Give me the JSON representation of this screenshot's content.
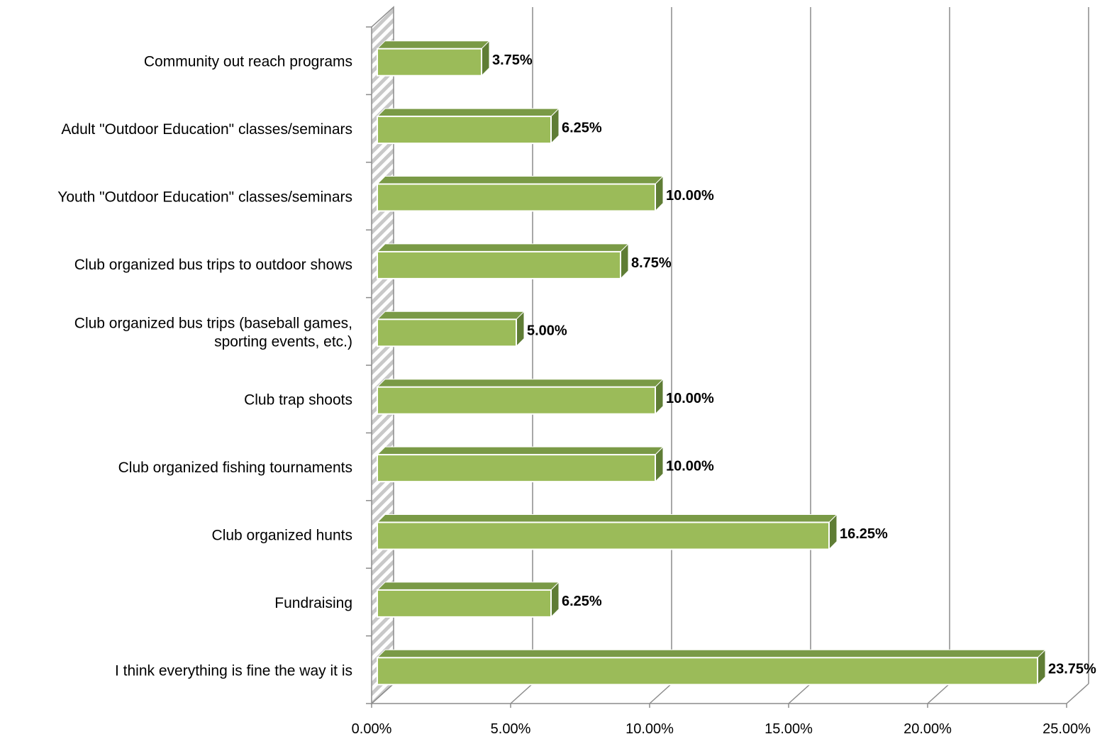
{
  "chart_data": {
    "type": "bar",
    "orientation": "horizontal",
    "style": "3d",
    "categories": [
      "Community out reach programs",
      "Adult \"Outdoor Education\" classes/seminars",
      "Youth \"Outdoor Education\" classes/seminars",
      "Club organized bus trips to outdoor shows",
      "Club organized bus trips (baseball games, sporting events, etc.)",
      "Club trap shoots",
      "Club organized fishing tournaments",
      "Club organized hunts",
      "Fundraising",
      "I think everything is fine the way it is"
    ],
    "category_lines": [
      [
        "Community out reach programs"
      ],
      [
        "Adult \"Outdoor Education\" classes/seminars"
      ],
      [
        "Youth \"Outdoor Education\" classes/seminars"
      ],
      [
        "Club organized bus trips to outdoor shows"
      ],
      [
        "Club organized bus trips (baseball games,",
        "sporting events, etc.)"
      ],
      [
        "Club trap shoots"
      ],
      [
        "Club organized fishing tournaments"
      ],
      [
        "Club organized hunts"
      ],
      [
        "Fundraising"
      ],
      [
        "I think everything is fine the way it is"
      ]
    ],
    "values": [
      3.75,
      6.25,
      10.0,
      8.75,
      5.0,
      10.0,
      10.0,
      16.25,
      6.25,
      23.75
    ],
    "data_labels": [
      "3.75%",
      "6.25%",
      "10.00%",
      "8.75%",
      "5.00%",
      "10.00%",
      "10.00%",
      "16.25%",
      "6.25%",
      "23.75%"
    ],
    "xlim": [
      0,
      25
    ],
    "xticks": [
      0,
      5,
      10,
      15,
      20,
      25
    ],
    "xtick_labels": [
      "0.00%",
      "5.00%",
      "10.00%",
      "15.00%",
      "20.00%",
      "25.00%"
    ],
    "title": "",
    "xlabel": "",
    "ylabel": "",
    "grid": true,
    "legend": false,
    "colors": {
      "bar_face": "#9bbb59",
      "bar_top": "#7a9a46",
      "bar_side": "#5f7d35",
      "bar_outline": "#ffffff",
      "gridline": "#8c8c8c",
      "axis": "#8c8c8c",
      "wall_hatch": "#bfbfbf"
    }
  }
}
